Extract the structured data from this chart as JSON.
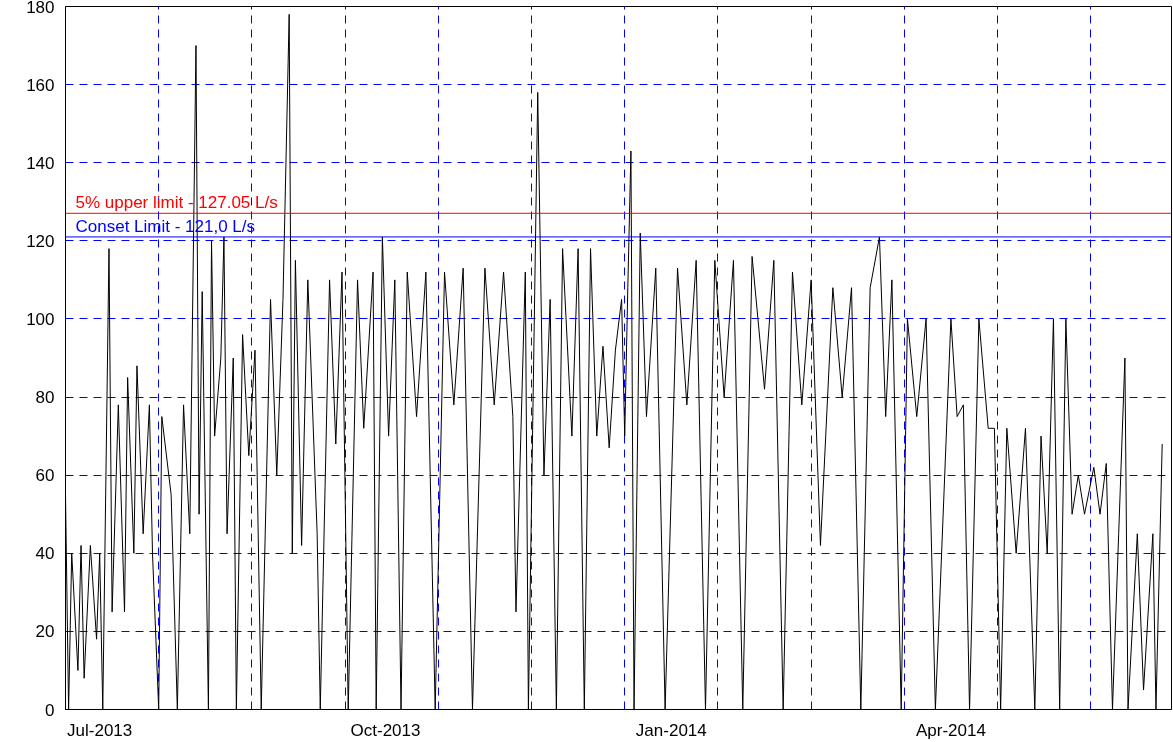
{
  "chart_data": {
    "type": "line",
    "x": [
      "2013-06-20",
      "2013-06-21",
      "2013-06-22",
      "2013-06-24",
      "2013-06-25",
      "2013-06-26",
      "2013-06-28",
      "2013-06-30",
      "2013-07-01",
      "2013-07-02",
      "2013-07-04",
      "2013-07-05",
      "2013-07-07",
      "2013-07-09",
      "2013-07-10",
      "2013-07-12",
      "2013-07-13",
      "2013-07-15",
      "2013-07-17",
      "2013-07-18",
      "2013-07-20",
      "2013-07-21",
      "2013-07-24",
      "2013-07-26",
      "2013-07-28",
      "2013-07-30",
      "2013-08-01",
      "2013-08-02",
      "2013-08-03",
      "2013-08-05",
      "2013-08-06",
      "2013-08-07",
      "2013-08-09",
      "2013-08-10",
      "2013-08-11",
      "2013-08-13",
      "2013-08-14",
      "2013-08-16",
      "2013-08-18",
      "2013-08-20",
      "2013-08-22",
      "2013-08-25",
      "2013-08-27",
      "2013-08-29",
      "2013-08-31",
      "2013-09-01",
      "2013-09-02",
      "2013-09-04",
      "2013-09-06",
      "2013-09-09",
      "2013-09-10",
      "2013-09-13",
      "2013-09-15",
      "2013-09-17",
      "2013-09-19",
      "2013-09-22",
      "2013-09-24",
      "2013-09-27",
      "2013-09-28",
      "2013-09-30",
      "2013-10-02",
      "2013-10-04",
      "2013-10-06",
      "2013-10-08",
      "2013-10-11",
      "2013-10-14",
      "2013-10-17",
      "2013-10-20",
      "2013-10-23",
      "2013-10-26",
      "2013-10-29",
      "2013-11-02",
      "2013-11-05",
      "2013-11-08",
      "2013-11-11",
      "2013-11-12",
      "2013-11-15",
      "2013-11-16",
      "2013-11-19",
      "2013-11-21",
      "2013-11-23",
      "2013-11-25",
      "2013-11-27",
      "2013-11-30",
      "2013-12-02",
      "2013-12-04",
      "2013-12-06",
      "2013-12-08",
      "2013-12-10",
      "2013-12-12",
      "2013-12-14",
      "2013-12-16",
      "2013-12-17",
      "2013-12-18",
      "2013-12-19",
      "2013-12-20",
      "2013-12-22",
      "2013-12-24",
      "2013-12-27",
      "2013-12-30",
      "2014-01-03",
      "2014-01-06",
      "2014-01-09",
      "2014-01-12",
      "2014-01-15",
      "2014-01-18",
      "2014-01-21",
      "2014-01-24",
      "2014-01-27",
      "2014-01-31",
      "2014-02-03",
      "2014-02-06",
      "2014-02-09",
      "2014-02-12",
      "2014-02-15",
      "2014-02-18",
      "2014-02-22",
      "2014-02-25",
      "2014-02-28",
      "2014-03-03",
      "2014-03-06",
      "2014-03-09",
      "2014-03-11",
      "2014-03-13",
      "2014-03-16",
      "2014-03-18",
      "2014-03-21",
      "2014-03-24",
      "2014-03-27",
      "2014-04-01",
      "2014-04-03",
      "2014-04-05",
      "2014-04-07",
      "2014-04-10",
      "2014-04-13",
      "2014-04-15",
      "2014-04-17",
      "2014-04-19",
      "2014-04-22",
      "2014-04-25",
      "2014-04-28",
      "2014-04-30",
      "2014-05-02",
      "2014-05-04",
      "2014-05-06",
      "2014-05-08",
      "2014-05-10",
      "2014-05-12",
      "2014-05-14",
      "2014-05-17",
      "2014-05-19",
      "2014-05-21",
      "2014-05-23",
      "2014-05-25",
      "2014-05-27",
      "2014-05-28",
      "2014-05-31",
      "2014-06-02",
      "2014-06-05",
      "2014-06-06",
      "2014-06-08"
    ],
    "series": [
      {
        "color": "#000000",
        "values": [
          55,
          0,
          40,
          10,
          42,
          8,
          42,
          18,
          40,
          0,
          118,
          25,
          78,
          25,
          85,
          40,
          88,
          45,
          78,
          40,
          0,
          75,
          55,
          0,
          78,
          45,
          170,
          50,
          107,
          0,
          120,
          70,
          90,
          121,
          45,
          90,
          0,
          96,
          65,
          92,
          0,
          105,
          60,
          105,
          178,
          40,
          115,
          42,
          110,
          45,
          0,
          110,
          68,
          112,
          0,
          110,
          72,
          112,
          0,
          121,
          70,
          110,
          0,
          112,
          75,
          112,
          0,
          112,
          78,
          113,
          0,
          113,
          78,
          112,
          75,
          25,
          112,
          0,
          158,
          60,
          105,
          0,
          118,
          70,
          118,
          0,
          118,
          70,
          93,
          67,
          92,
          105,
          70,
          108,
          143,
          0,
          122,
          75,
          113,
          0,
          113,
          78,
          115,
          0,
          115,
          80,
          115,
          0,
          116,
          82,
          115,
          0,
          112,
          78,
          110,
          42,
          108,
          80,
          108,
          0,
          108,
          121,
          75,
          110,
          0,
          100,
          75,
          100,
          0,
          100,
          75,
          78,
          0,
          100,
          72,
          72,
          0,
          72,
          40,
          72,
          0,
          70,
          40,
          100,
          0,
          100,
          50,
          60,
          50,
          62,
          50,
          63,
          0,
          45,
          90,
          0,
          45,
          5,
          45,
          0,
          68
        ]
      }
    ],
    "xlim": [
      "2013-06-20",
      "2014-06-11"
    ],
    "xticks": [
      {
        "value": "2013-07-01",
        "label": "Jul-2013"
      },
      {
        "value": "2013-07-20",
        "label": null
      },
      {
        "value": "2013-08-19",
        "label": null
      },
      {
        "value": "2013-09-18",
        "label": null
      },
      {
        "value": "2013-10-01",
        "label": "Oct-2013"
      },
      {
        "value": "2013-10-18",
        "label": null
      },
      {
        "value": "2013-11-17",
        "label": null
      },
      {
        "value": "2013-12-17",
        "label": null
      },
      {
        "value": "2014-01-01",
        "label": "Jan-2014"
      },
      {
        "value": "2014-01-16",
        "label": null
      },
      {
        "value": "2014-02-15",
        "label": null
      },
      {
        "value": "2014-03-17",
        "label": null
      },
      {
        "value": "2014-04-01",
        "label": "Apr-2014"
      },
      {
        "value": "2014-04-16",
        "label": null
      },
      {
        "value": "2014-05-16",
        "label": null
      }
    ],
    "ylim": [
      0,
      180
    ],
    "yticks": [
      0,
      20,
      40,
      60,
      80,
      100,
      120,
      140,
      160,
      180
    ],
    "grid": true,
    "marker": "none",
    "line_style": "solid",
    "ref_lines": [
      {
        "axis": "y",
        "value": 127.05,
        "label": "5% upper limit - 127.05 L/s",
        "color": "#ff0000"
      },
      {
        "axis": "y",
        "value": 121.0,
        "label": "Conset Limit - 121,0 L/s",
        "color": "#0000ff"
      }
    ]
  }
}
